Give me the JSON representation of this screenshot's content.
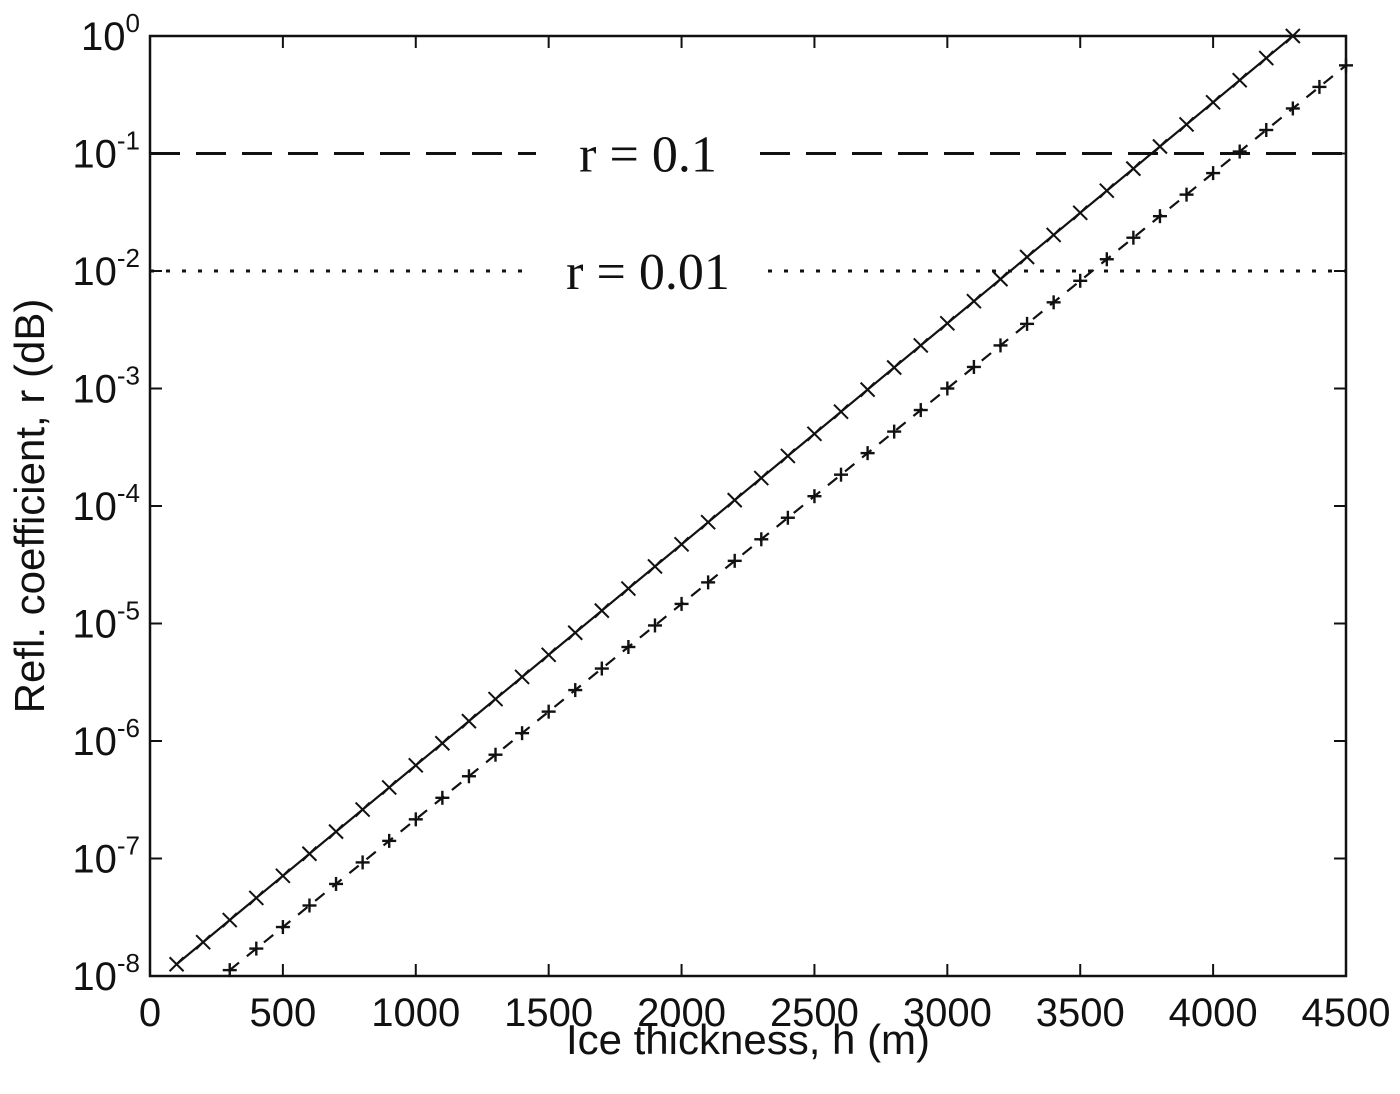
{
  "chart_data": {
    "type": "line",
    "title": "",
    "xlabel": "Ice thickness, h (m)",
    "ylabel": "Refl. coefficient, r (dB)",
    "xlim": [
      0,
      4500
    ],
    "ylim": [
      1e-08,
      1
    ],
    "yscale": "log",
    "grid": false,
    "legend": "none",
    "x_ticks": [
      "0",
      "500",
      "1000",
      "1500",
      "2000",
      "2500",
      "3000",
      "3500",
      "4000",
      "4500"
    ],
    "y_ticks": [
      {
        "base": "10",
        "exp": "0"
      },
      {
        "base": "10",
        "exp": "-1"
      },
      {
        "base": "10",
        "exp": "-2"
      },
      {
        "base": "10",
        "exp": "-3"
      },
      {
        "base": "10",
        "exp": "-4"
      },
      {
        "base": "10",
        "exp": "-5"
      },
      {
        "base": "10",
        "exp": "-6"
      },
      {
        "base": "10",
        "exp": "-7"
      },
      {
        "base": "10",
        "exp": "-8"
      }
    ],
    "series": [
      {
        "style": "solid",
        "marker": "x",
        "color": "#111111",
        "x": [
          100,
          4300
        ],
        "log10_y": [
          -7.9,
          0.0
        ],
        "marker_step": 100
      },
      {
        "style": "dashed",
        "marker": "+",
        "color": "#111111",
        "x": [
          300,
          4500
        ],
        "log10_y": [
          -7.95,
          -0.25
        ],
        "marker_step": 100
      }
    ],
    "reference_lines": [
      {
        "y": 0.1,
        "style": "dashed",
        "label": "r = 0.1"
      },
      {
        "y": 0.01,
        "style": "dotted",
        "label": "r = 0.01"
      }
    ]
  }
}
